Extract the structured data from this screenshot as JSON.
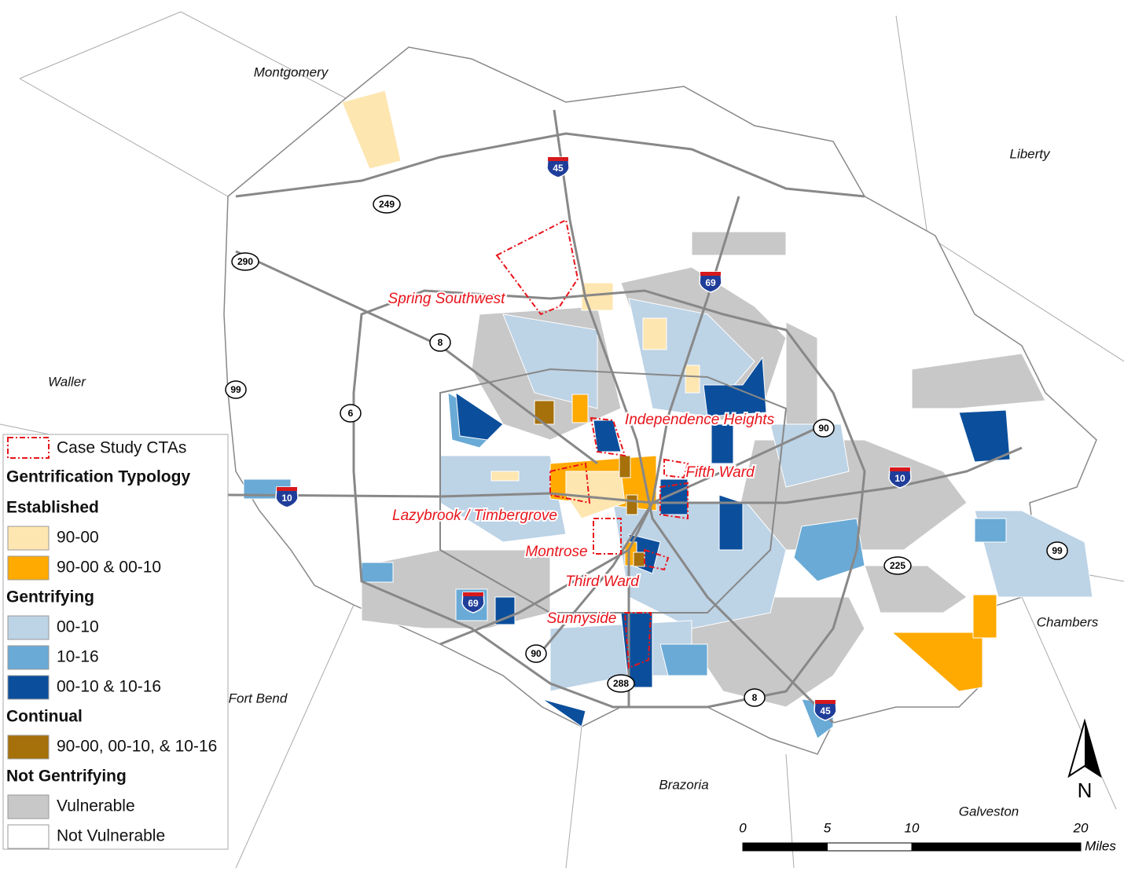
{
  "counties": [
    "Montgomery",
    "Liberty",
    "Waller",
    "Chambers",
    "Fort Bend",
    "Brazoria",
    "Galveston"
  ],
  "highways": [
    {
      "label": "45",
      "kind": "interstate"
    },
    {
      "label": "69",
      "kind": "interstate"
    },
    {
      "label": "249",
      "kind": "route"
    },
    {
      "label": "290",
      "kind": "route"
    },
    {
      "label": "8",
      "kind": "route"
    },
    {
      "label": "99",
      "kind": "route"
    },
    {
      "label": "6",
      "kind": "route"
    },
    {
      "label": "10",
      "kind": "interstate"
    },
    {
      "label": "10",
      "kind": "interstate"
    },
    {
      "label": "90",
      "kind": "route"
    },
    {
      "label": "225",
      "kind": "route"
    },
    {
      "label": "99",
      "kind": "route"
    },
    {
      "label": "69",
      "kind": "interstate"
    },
    {
      "label": "90",
      "kind": "route"
    },
    {
      "label": "288",
      "kind": "route"
    },
    {
      "label": "8",
      "kind": "route"
    },
    {
      "label": "45",
      "kind": "interstate"
    }
  ],
  "case_studies": [
    "Spring Southwest",
    "Independence Heights",
    "Fifth Ward",
    "Lazybrook / Timbergrove",
    "Montrose",
    "Third Ward",
    "Sunnyside"
  ],
  "legend": {
    "case_study": "Case Study CTAs",
    "title": "Gentrification Typology",
    "groups": [
      {
        "heading": "Established",
        "items": [
          {
            "label": "90-00",
            "color": "#fde6b0"
          },
          {
            "label": "90-00 & 00-10",
            "color": "#ffaa00"
          }
        ]
      },
      {
        "heading": "Gentrifying",
        "items": [
          {
            "label": "00-10",
            "color": "#bdd3e6"
          },
          {
            "label": "10-16",
            "color": "#6aaad6"
          },
          {
            "label": "00-10 & 10-16",
            "color": "#0b4f9c"
          }
        ]
      },
      {
        "heading": "Continual",
        "items": [
          {
            "label": "90-00, 00-10, & 10-16",
            "color": "#a6700a"
          }
        ]
      },
      {
        "heading": "Not Gentrifying",
        "items": [
          {
            "label": "Vulnerable",
            "color": "#c8c8c8"
          },
          {
            "label": "Not Vulnerable",
            "color": "#ffffff"
          }
        ]
      }
    ]
  },
  "scale": {
    "ticks": [
      0,
      5,
      10,
      20
    ],
    "unit": "Miles"
  },
  "north": "N"
}
